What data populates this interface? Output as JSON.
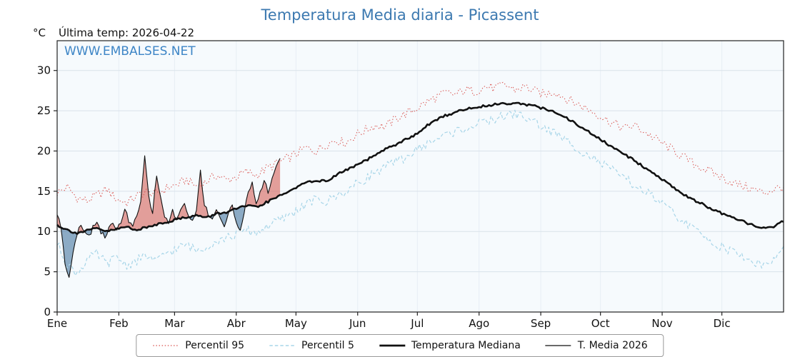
{
  "header": {
    "title": "Temperatura Media diaria - Picassent",
    "unit": "°C",
    "last_temp": "Última temp: 2026-04-22",
    "watermark": "WWW.EMBALSES.NET"
  },
  "colors": {
    "title": "#3c79b0",
    "watermark": "#3d85c6",
    "plot_bg": "#f6fafd",
    "grid_h": "#d9e2ea",
    "grid_v": "#e7eef4",
    "border": "#222222",
    "p95": "#d9534f",
    "p5": "#a7d5e8",
    "median": "#111111",
    "t2026": "#111111",
    "fill_above": "rgba(214,96,88,0.6)",
    "fill_below": "rgba(70,118,160,0.6)"
  },
  "chart_data": {
    "type": "line",
    "title": "Temperatura Media diaria - Picassent",
    "xlabel": "",
    "ylabel": "°C",
    "ylim": [
      0,
      33.7
    ],
    "yticks": [
      0,
      5,
      10,
      15,
      20,
      25,
      30
    ],
    "x_unit": "day_of_year",
    "x_range": [
      0,
      365
    ],
    "months": [
      "Ene",
      "Feb",
      "Mar",
      "Abr",
      "May",
      "Jun",
      "Jul",
      "Ago",
      "Sep",
      "Oct",
      "Nov",
      "Dic"
    ],
    "month_start_days": [
      0,
      31,
      59,
      90,
      120,
      151,
      181,
      212,
      243,
      273,
      304,
      334
    ],
    "grid": true,
    "legend_position": "bottom",
    "series": [
      {
        "name": "Percentil 95",
        "color": "#d9534f",
        "style": "dotted",
        "noise": 0.6,
        "x_start": 0,
        "x_step": 5,
        "values": [
          14.8,
          15.5,
          14.2,
          13.8,
          14.5,
          15.2,
          14.0,
          13.6,
          14.4,
          15.0,
          14.6,
          15.4,
          15.8,
          16.4,
          15.6,
          16.2,
          17.0,
          16.4,
          16.8,
          17.4,
          17.0,
          17.8,
          18.4,
          19.0,
          19.6,
          20.4,
          20.0,
          20.8,
          21.4,
          21.0,
          22.0,
          22.6,
          23.2,
          23.0,
          24.0,
          24.6,
          25.2,
          26.0,
          26.6,
          27.2,
          27.0,
          27.6,
          27.4,
          28.0,
          27.8,
          28.2,
          27.6,
          28.0,
          27.4,
          27.0,
          27.4,
          26.6,
          26.0,
          25.4,
          24.8,
          24.0,
          23.4,
          22.8,
          23.2,
          22.4,
          21.6,
          20.8,
          20.0,
          19.2,
          18.4,
          17.8,
          17.2,
          16.6,
          16.0,
          15.6,
          15.2,
          14.8,
          15.2,
          15.6
        ]
      },
      {
        "name": "Percentil 5",
        "color": "#a7d5e8",
        "style": "dashed",
        "noise": 0.6,
        "x_start": 0,
        "x_step": 5,
        "values": [
          8.5,
          6.0,
          4.8,
          6.5,
          7.2,
          6.0,
          6.8,
          5.8,
          6.4,
          7.0,
          6.2,
          7.4,
          7.8,
          8.4,
          7.6,
          8.2,
          8.8,
          9.2,
          9.6,
          10.2,
          9.8,
          10.6,
          11.2,
          11.8,
          12.6,
          13.4,
          14.0,
          13.6,
          14.4,
          15.0,
          15.8,
          16.6,
          17.4,
          18.0,
          18.6,
          19.2,
          20.0,
          20.8,
          21.4,
          22.0,
          22.4,
          22.8,
          23.2,
          23.6,
          24.0,
          24.4,
          24.6,
          24.2,
          23.6,
          22.8,
          22.2,
          21.4,
          20.6,
          19.8,
          19.0,
          18.2,
          17.4,
          16.6,
          15.8,
          15.0,
          14.2,
          13.2,
          12.2,
          11.2,
          10.2,
          9.4,
          8.6,
          8.0,
          7.4,
          6.8,
          6.2,
          5.8,
          6.4,
          8.0
        ]
      },
      {
        "name": "Temperatura Mediana",
        "color": "#111111",
        "style": "solid-thick",
        "noise": 0.15,
        "x_start": 0,
        "x_step": 5,
        "values": [
          10.8,
          10.2,
          9.8,
          10.1,
          10.4,
          10.0,
          10.3,
          10.6,
          10.2,
          10.5,
          10.9,
          11.2,
          11.5,
          11.8,
          12.0,
          11.7,
          12.2,
          12.4,
          12.8,
          13.2,
          13.0,
          13.6,
          14.2,
          14.8,
          15.5,
          16.0,
          16.4,
          16.2,
          17.0,
          17.6,
          18.2,
          18.8,
          19.5,
          20.2,
          20.8,
          21.4,
          22.0,
          23.0,
          23.8,
          24.4,
          24.8,
          25.2,
          25.4,
          25.6,
          25.8,
          25.9,
          26.0,
          25.8,
          25.6,
          25.2,
          24.8,
          24.2,
          23.5,
          22.7,
          21.9,
          21.1,
          20.3,
          19.6,
          18.8,
          18.0,
          17.2,
          16.3,
          15.4,
          14.6,
          13.9,
          13.3,
          12.7,
          12.1,
          11.6,
          11.2,
          10.8,
          10.4,
          10.5,
          11.3
        ]
      },
      {
        "name": "T. Media 2026",
        "color": "#111111",
        "style": "solid-thin",
        "noise": 0.3,
        "x_start": 0,
        "x_step": 2,
        "values": [
          12.2,
          10.4,
          6.2,
          4.3,
          7.6,
          9.8,
          10.8,
          10.2,
          9.3,
          10.6,
          11.3,
          10.0,
          9.2,
          10.5,
          10.9,
          10.2,
          11.1,
          12.9,
          11.3,
          10.5,
          11.9,
          13.5,
          19.5,
          14.2,
          12.5,
          16.9,
          14.3,
          11.9,
          11.1,
          12.5,
          11.5,
          12.9,
          13.3,
          11.9,
          11.3,
          12.7,
          17.4,
          13.5,
          12.1,
          11.5,
          12.9,
          11.7,
          10.5,
          12.1,
          13.3,
          11.1,
          10.3,
          12.5,
          14.7,
          15.9,
          13.5,
          14.9,
          16.3,
          14.9,
          16.5,
          17.9,
          19.2
        ]
      }
    ],
    "fill_between": {
      "upper_series": "T. Media 2026",
      "reference_series": "Temperatura Mediana",
      "above_color": "rgba(214,96,88,0.6)",
      "below_color": "rgba(70,118,160,0.6)"
    }
  }
}
